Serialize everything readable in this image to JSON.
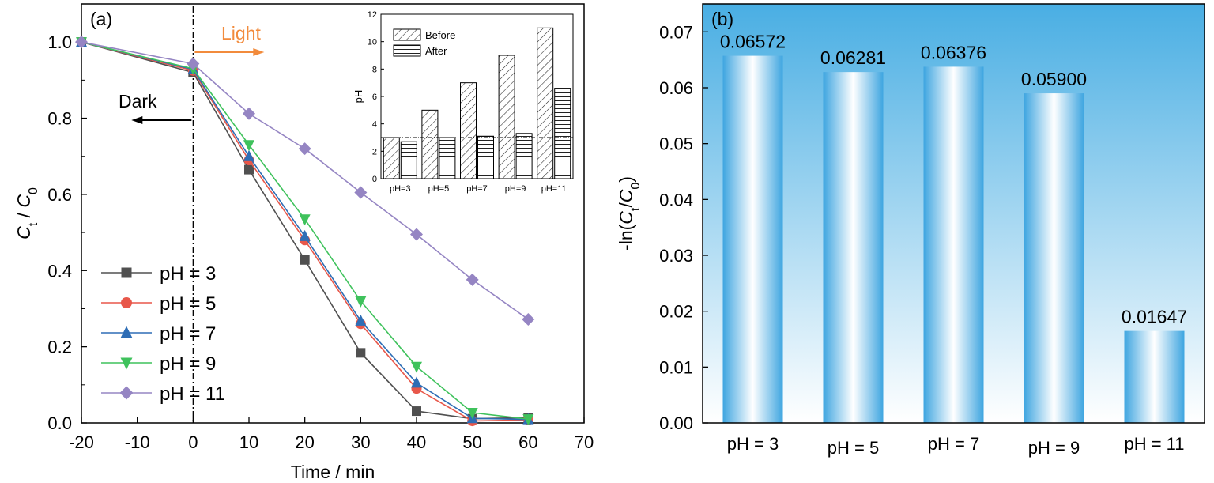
{
  "chart_data": [
    {
      "type": "line",
      "panel_label": "(a)",
      "xlabel": "Time / min",
      "ylabel_main": "C",
      "ylabel_sub1": "t",
      "ylabel_mid": " / ",
      "ylabel_main2": "C",
      "ylabel_sub2": "0",
      "xlim": [
        -20,
        70
      ],
      "ylim": [
        0.0,
        1.1
      ],
      "x_ticks": [
        "-20",
        "-10",
        "0",
        "10",
        "20",
        "30",
        "40",
        "50",
        "60",
        "70"
      ],
      "y_ticks": [
        "0.0",
        "0.2",
        "0.4",
        "0.6",
        "0.8",
        "1.0"
      ],
      "x": [
        -20,
        0,
        10,
        20,
        30,
        40,
        50,
        60
      ],
      "annotations": {
        "light": "Light",
        "dark": "Dark",
        "light_color": "#f28b3c"
      },
      "legend_position": "bottom-left",
      "series": [
        {
          "name": "pH = 3",
          "color": "#505050",
          "marker": "square",
          "values": [
            1.0,
            0.92,
            0.665,
            0.428,
            0.184,
            0.031,
            0.011,
            0.014
          ]
        },
        {
          "name": "pH = 5",
          "color": "#e8574a",
          "marker": "circle",
          "values": [
            1.0,
            0.925,
            0.69,
            0.48,
            0.26,
            0.09,
            0.005,
            0.008
          ]
        },
        {
          "name": "pH = 7",
          "color": "#2e6db5",
          "marker": "triangle-up",
          "values": [
            1.0,
            0.928,
            0.7,
            0.49,
            0.268,
            0.105,
            0.012,
            0.009
          ]
        },
        {
          "name": "pH = 9",
          "color": "#3fc25c",
          "marker": "triangle-down",
          "values": [
            1.0,
            0.93,
            0.73,
            0.535,
            0.32,
            0.148,
            0.027,
            0.01
          ]
        },
        {
          "name": "pH = 11",
          "color": "#9585c3",
          "marker": "diamond",
          "values": [
            1.0,
            0.943,
            0.812,
            0.72,
            0.605,
            0.495,
            0.376,
            0.272
          ]
        }
      ],
      "inset": {
        "type": "bar",
        "ylabel": "pH",
        "ylim": [
          0,
          12
        ],
        "y_ticks": [
          "0",
          "2",
          "4",
          "6",
          "8",
          "10",
          "12"
        ],
        "categories": [
          "pH=3",
          "pH=5",
          "pH=7",
          "pH=9",
          "pH=11"
        ],
        "reference_line": 3,
        "series": [
          {
            "name": "Before",
            "pattern": "diagonal",
            "values": [
              3,
              5,
              7,
              9,
              11
            ]
          },
          {
            "name": "After",
            "pattern": "horizontal",
            "values": [
              2.7,
              3.0,
              3.1,
              3.3,
              6.6
            ]
          }
        ]
      }
    },
    {
      "type": "bar",
      "panel_label": "(b)",
      "ylabel_pre": "-ln(",
      "ylabel_c1": "C",
      "ylabel_s1": "t",
      "ylabel_slash": "/",
      "ylabel_c2": "C",
      "ylabel_s2": "0",
      "ylabel_post": ")",
      "ylim": [
        0,
        0.075
      ],
      "y_ticks": [
        "0.00",
        "0.01",
        "0.02",
        "0.03",
        "0.04",
        "0.05",
        "0.06",
        "0.07"
      ],
      "categories": [
        "pH = 3",
        "pH = 5",
        "pH = 7",
        "pH = 9",
        "pH = 11"
      ],
      "values": [
        0.06572,
        0.06281,
        0.06376,
        0.059,
        0.01647
      ],
      "value_labels": [
        "0.06572",
        "0.06281",
        "0.06376",
        "0.05900",
        "0.01647"
      ],
      "background_gradient": [
        "#49aee3",
        "#ffffff"
      ],
      "bar_color": "#3ea5e0"
    }
  ]
}
